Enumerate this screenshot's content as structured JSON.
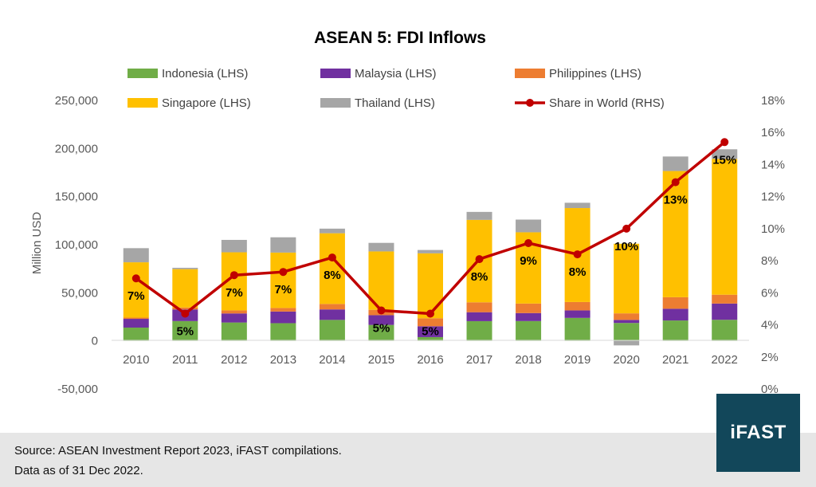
{
  "chart_data": {
    "type": "bar",
    "title": "ASEAN 5: FDI Inflows",
    "ylabel": "Million USD",
    "ylim": [
      -50000,
      250000
    ],
    "y2lim": [
      0,
      18
    ],
    "y_ticks": [
      "250,000",
      "200,000",
      "150,000",
      "100,000",
      "50,000",
      "0",
      "-50,000"
    ],
    "y2_ticks": [
      "18%",
      "16%",
      "14%",
      "12%",
      "10%",
      "8%",
      "6%",
      "4%",
      "2%",
      "0%"
    ],
    "categories": [
      "2010",
      "2011",
      "2012",
      "2013",
      "2014",
      "2015",
      "2016",
      "2017",
      "2018",
      "2019",
      "2020",
      "2021",
      "2022"
    ],
    "series": [
      {
        "name": "Indonesia (LHS)",
        "color": "#70ad47",
        "values": [
          13800,
          20600,
          19100,
          18400,
          21800,
          16600,
          3900,
          20500,
          20600,
          23900,
          18600,
          21200,
          21900
        ]
      },
      {
        "name": "Malaysia (LHS)",
        "color": "#7030a0",
        "values": [
          9100,
          12100,
          9400,
          12100,
          10900,
          10100,
          11300,
          9300,
          8300,
          7800,
          3200,
          12200,
          16900
        ]
      },
      {
        "name": "Philippines (LHS)",
        "color": "#ed7d31",
        "values": [
          1300,
          2000,
          3200,
          3700,
          5700,
          5600,
          8300,
          10300,
          9900,
          8700,
          6800,
          12000,
          9200
        ]
      },
      {
        "name": "Singapore (LHS)",
        "color": "#ffc000",
        "values": [
          57500,
          39900,
          60400,
          57600,
          73500,
          60700,
          67500,
          85700,
          74100,
          97700,
          72400,
          131200,
          141200
        ]
      },
      {
        "name": "Thailand (LHS)",
        "color": "#a6a6a6",
        "values": [
          14700,
          1400,
          12900,
          15900,
          4800,
          8900,
          3500,
          8300,
          13200,
          5500,
          -4700,
          15100,
          10000
        ]
      }
    ],
    "line": {
      "name": "Share in World (RHS)",
      "color": "#c00000",
      "values": [
        6.9,
        4.7,
        7.1,
        7.3,
        8.2,
        4.9,
        4.7,
        8.1,
        9.1,
        8.4,
        10.0,
        12.9,
        15.4
      ]
    },
    "data_labels": [
      "7%",
      "5%",
      "7%",
      "7%",
      "8%",
      "5%",
      "5%",
      "8%",
      "9%",
      "8%",
      "10%",
      "13%",
      "15%"
    ],
    "legend_placement": "top"
  },
  "footer": {
    "source": "Source: ASEAN Investment Report 2023, iFAST compilations.",
    "date_note": "Data as of 31 Dec 2022."
  },
  "logo_text": "iFAST"
}
